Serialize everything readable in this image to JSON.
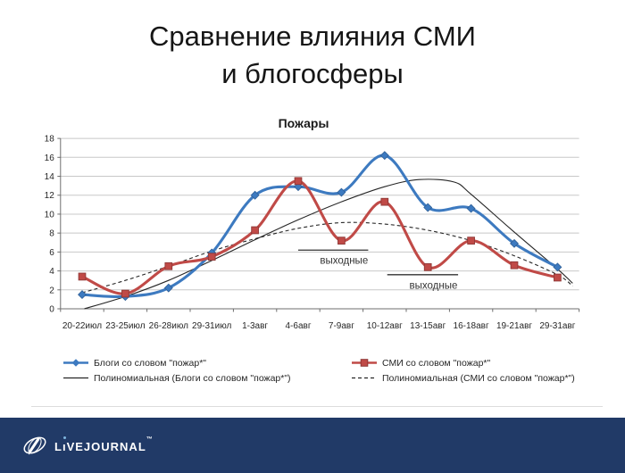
{
  "slide": {
    "title_line1": "Сравнение влияния СМИ",
    "title_line2": "и блогосферы"
  },
  "chart_data": {
    "type": "line",
    "title": "Пожары",
    "categories": [
      "20-22июл",
      "23-25июл",
      "26-28июл",
      "29-31июл",
      "1-3авг",
      "4-6авг",
      "7-9авг",
      "10-12авг",
      "13-15авг",
      "16-18авг",
      "19-21авг",
      "29-31авг"
    ],
    "series": [
      {
        "name": "Блоги со словом \"пожар*\"",
        "color": "#3d7ac0",
        "marker": "diamond",
        "values": [
          1.5,
          1.3,
          2.2,
          5.9,
          12.0,
          12.9,
          12.3,
          16.2,
          10.7,
          10.6,
          6.9,
          4.4
        ]
      },
      {
        "name": "СМИ со словом \"пожар*\"",
        "color": "#c04a47",
        "marker": "square",
        "values": [
          3.4,
          1.6,
          4.5,
          5.5,
          8.3,
          13.5,
          7.2,
          11.3,
          4.4,
          7.2,
          4.6,
          3.3
        ]
      }
    ],
    "trendlines": [
      {
        "name": "Полиномиальная (Блоги со словом \"пожар*\")",
        "style": "solid",
        "color": "#262626",
        "points": [
          [
            0.05,
            0
          ],
          [
            1,
            1.3
          ],
          [
            2,
            3.0
          ],
          [
            3,
            5.1
          ],
          [
            4,
            7.3
          ],
          [
            5,
            9.4
          ],
          [
            6,
            11.3
          ],
          [
            7,
            12.9
          ],
          [
            7.8,
            13.65
          ],
          [
            8.6,
            13.4
          ],
          [
            9,
            12.1
          ],
          [
            10,
            8.1
          ],
          [
            11,
            4.2
          ],
          [
            11.35,
            2.7
          ]
        ]
      },
      {
        "name": "Полиномиальная (СМИ со словом \"пожар*\")",
        "style": "dashed",
        "color": "#262626",
        "points": [
          [
            0,
            1.7
          ],
          [
            1,
            3.0
          ],
          [
            2,
            4.5
          ],
          [
            3,
            6.1
          ],
          [
            4,
            7.4
          ],
          [
            5,
            8.5
          ],
          [
            6,
            9.1
          ],
          [
            7,
            8.95
          ],
          [
            8,
            8.3
          ],
          [
            9,
            7.2
          ],
          [
            10,
            5.6
          ],
          [
            11,
            3.6
          ],
          [
            11.35,
            2.4
          ]
        ]
      }
    ],
    "annotations": [
      {
        "text": "выходные",
        "from": 5.5,
        "to": 6.62,
        "value": 6.2
      },
      {
        "text": "выходные",
        "from": 7.56,
        "to": 8.7,
        "value": 3.6
      }
    ],
    "ylim": [
      0,
      18
    ],
    "ytick_step": 2,
    "grid": true,
    "legend_position": "bottom"
  },
  "footer": {
    "brand_l": "L",
    "brand_i": "ı",
    "brand_rest": "VEJOURNAL",
    "tm": "™",
    "bar_color": "#213a67"
  }
}
